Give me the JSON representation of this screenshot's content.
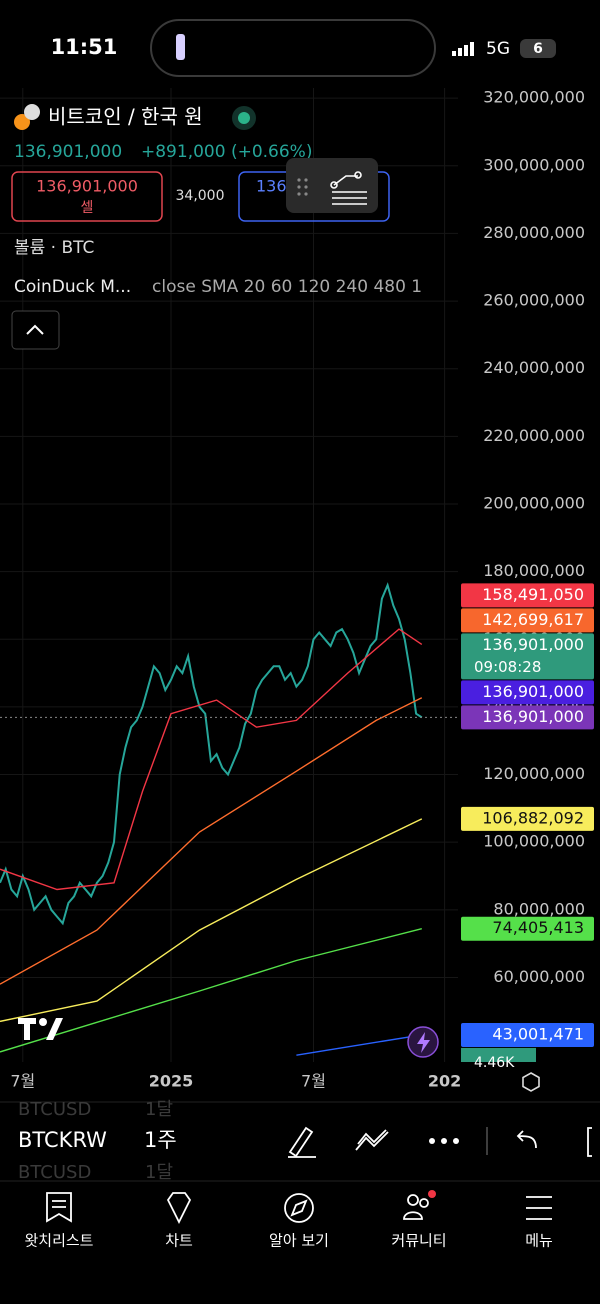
{
  "status_bar": {
    "time": "11:51",
    "network": "5G",
    "battery": "6"
  },
  "header": {
    "title": "비트코인 / 한국 원",
    "price": "136,901,000",
    "change": "+891,000 (+0.66%)",
    "sell_price": "136,901,000",
    "sell_label": "셀",
    "spread": "34,000",
    "buy_price": "136"
  },
  "legend": {
    "volume": "볼륨 · BTC",
    "indicator_name": "CoinDuck M...",
    "indicator_params": "close SMA 20 60 120 240 480 1"
  },
  "chart_data": {
    "type": "line",
    "categories": [
      null,
      null,
      null,
      null,
      "7월",
      null,
      null,
      null,
      null,
      null,
      null,
      null,
      null,
      null,
      null,
      null,
      null,
      null,
      null,
      null,
      null,
      null,
      null,
      null,
      null,
      null,
      null,
      null,
      null,
      null,
      "2025",
      null,
      null,
      null,
      null,
      null,
      null,
      null,
      null,
      null,
      null,
      null,
      null,
      null,
      null,
      null,
      null,
      null,
      null,
      null,
      null,
      null,
      null,
      null,
      null,
      "7월",
      null,
      null,
      null,
      null,
      null,
      null,
      null,
      null,
      null,
      null,
      null,
      null,
      null,
      null,
      null,
      null,
      null,
      null,
      null,
      null,
      null,
      null,
      "202"
    ],
    "series": [
      {
        "color": "#26a69a",
        "values": [
          88000000,
          92000000,
          86000000,
          84000000,
          90000000,
          86000000,
          80000000,
          82000000,
          84000000,
          80000000,
          78000000,
          76000000,
          82000000,
          84000000,
          88000000,
          86000000,
          84000000,
          88000000,
          90000000,
          94000000,
          100000000,
          120000000,
          128000000,
          134000000,
          136000000,
          140000000,
          146000000,
          152000000,
          150000000,
          145000000,
          148000000,
          152000000,
          150000000,
          155000000,
          146000000,
          140000000,
          138000000,
          124000000,
          126000000,
          122000000,
          120000000,
          124000000,
          128000000,
          135000000,
          138000000,
          145000000,
          148000000,
          150000000,
          152000000,
          152000000,
          148000000,
          150000000,
          146000000,
          148000000,
          152000000,
          160000000,
          162000000,
          160000000,
          158000000,
          162000000,
          163000000,
          160000000,
          156000000,
          150000000,
          154000000,
          158000000,
          160000000,
          172000000,
          176000000,
          170000000,
          166000000,
          160000000,
          150000000,
          138000000,
          136901000,
          null,
          null,
          null,
          null
        ]
      },
      {
        "color": "#f23645",
        "x": [
          0,
          10,
          20,
          25,
          30,
          38,
          45,
          52,
          61,
          70,
          74
        ],
        "values": [
          92000000,
          86000000,
          88000000,
          115000000,
          138000000,
          142000000,
          134000000,
          136000000,
          150000000,
          163000000,
          158491050
        ]
      },
      {
        "color": "#ff6d2d",
        "x": [
          0,
          17,
          35,
          52,
          66,
          74
        ],
        "values": [
          58000000,
          74000000,
          103000000,
          121000000,
          136000000,
          142699617
        ]
      },
      {
        "color": "#f7ec5c",
        "x": [
          0,
          17,
          35,
          52,
          74
        ],
        "values": [
          47000000,
          53000000,
          74000000,
          89000000,
          106882092
        ]
      },
      {
        "color": "#55e04a",
        "x": [
          0,
          35,
          52,
          74
        ],
        "values": [
          38000000,
          56000000,
          65000000,
          74405413
        ]
      },
      {
        "color": "#2962ff",
        "x": [
          52,
          74
        ],
        "values": [
          37000000,
          43001471
        ]
      }
    ],
    "ylim": [
      35000000,
      323000000
    ],
    "yticks": [
      {
        "value": 60000000,
        "label": "60,000,000"
      },
      {
        "value": 80000000,
        "label": "80,000,000"
      },
      {
        "value": 100000000,
        "label": "100,000,000"
      },
      {
        "value": 120000000,
        "label": "120,000,000"
      },
      {
        "value": 140000000,
        "label": "140,000,000"
      },
      {
        "value": 160000000,
        "label": "160,000,000"
      },
      {
        "value": 180000000,
        "label": "180,000,000"
      },
      {
        "value": 200000000,
        "label": "200,000,000"
      },
      {
        "value": 220000000,
        "label": "220,000,000"
      },
      {
        "value": 240000000,
        "label": "240,000,000"
      },
      {
        "value": 260000000,
        "label": "260,000,000"
      },
      {
        "value": 280000000,
        "label": "280,000,000"
      },
      {
        "value": 300000000,
        "label": "300,000,000"
      },
      {
        "value": 320000000,
        "label": "320,000,000"
      }
    ],
    "grid": true,
    "price_labels": [
      {
        "value": 158491050,
        "label": "158,491,050",
        "color": "#f23645",
        "text_color": "#ffffff"
      },
      {
        "value": 142699617,
        "label": "142,699,617",
        "color": "#f7672d",
        "text_color": "#ffffff"
      },
      {
        "value": 136901000,
        "label": "136,901,000",
        "time": "09:08:28",
        "color": "#2f9a7c",
        "text_color": "#ffffff"
      },
      {
        "value": 136901000,
        "label": "136,901,000",
        "color": "#4a1fe0",
        "text_color": "#ffffff"
      },
      {
        "value": 136901000,
        "label": "136,901,000",
        "color": "#7b35b8",
        "text_color": "#ffffff"
      },
      {
        "value": 106882092,
        "label": "106,882,092",
        "color": "#f7ec5c",
        "text_color": "#111111"
      },
      {
        "value": 74405413,
        "label": "74,405,413",
        "color": "#55e04a",
        "text_color": "#111111"
      },
      {
        "value": 43001471,
        "label": "43,001,471",
        "color": "#2962ff",
        "text_color": "#ffffff"
      }
    ],
    "volume_label": "4.46K"
  },
  "toolbar": {
    "symbol": "BTCKRW",
    "interval": "1주",
    "ghost_above": {
      "symbol": "BTCUSD",
      "interval": "1달"
    },
    "ghost_below": {
      "symbol": "BTCUSD",
      "interval": "1달"
    }
  },
  "nav": [
    "왓치리스트",
    "차트",
    "알아 보기",
    "커뮤니티",
    "메뉴"
  ]
}
